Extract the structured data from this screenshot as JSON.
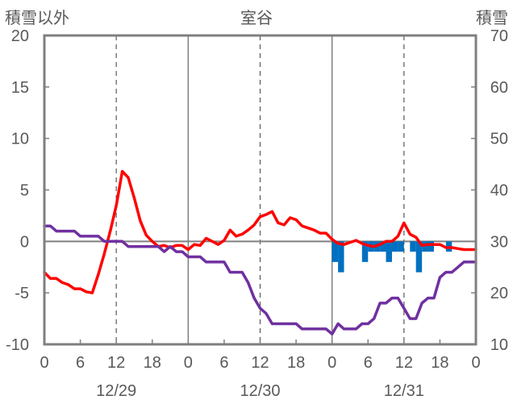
{
  "chart_data": {
    "type": "line",
    "title": "室谷",
    "left_axis_title": "積雪以外",
    "right_axis_title": "積雪",
    "left_ylim": [
      -10,
      20
    ],
    "left_yticks": [
      "20",
      "15",
      "10",
      "5",
      "0",
      "-5",
      "-10"
    ],
    "right_ylim": [
      10,
      70
    ],
    "right_yticks": [
      "70",
      "60",
      "50",
      "40",
      "30",
      "20",
      "10"
    ],
    "xlim_hours": [
      0,
      72
    ],
    "x_tick_labels": [
      "0",
      "6",
      "12",
      "18",
      "0",
      "6",
      "12",
      "18",
      "0",
      "6",
      "12",
      "18",
      "0"
    ],
    "date_labels": [
      "12/29",
      "12/30",
      "12/31"
    ],
    "grid": "solid vertical line at each day start; dashed vertical line at each noon; horizontal line at 0",
    "series": [
      {
        "type": "line",
        "color": "#ff0000",
        "x": [
          0,
          1,
          2,
          3,
          4,
          5,
          6,
          7,
          8,
          9,
          10,
          11,
          12,
          13,
          14,
          15,
          16,
          17,
          18,
          19,
          20,
          21,
          22,
          23,
          24,
          25,
          26,
          27,
          28,
          29,
          30,
          31,
          32,
          33,
          34,
          35,
          36,
          37,
          38,
          39,
          40,
          41,
          42,
          43,
          44,
          45,
          46,
          47,
          48,
          49,
          50,
          51,
          52,
          53,
          54,
          55,
          56,
          57,
          58,
          59,
          60,
          61,
          62,
          63,
          64,
          65,
          66,
          67,
          68,
          69,
          70,
          71,
          72
        ],
        "values": [
          -3.0,
          -3.6,
          -3.6,
          -4.0,
          -4.2,
          -4.6,
          -4.6,
          -4.9,
          -5.0,
          -3.2,
          -1.2,
          1.0,
          3.5,
          6.8,
          6.2,
          4.2,
          2.0,
          0.6,
          0.0,
          -0.5,
          -0.4,
          -0.6,
          -0.4,
          -0.4,
          -0.8,
          -0.3,
          -0.4,
          0.3,
          0.0,
          -0.3,
          0.1,
          1.1,
          0.5,
          0.7,
          1.1,
          1.6,
          2.4,
          2.6,
          2.9,
          1.8,
          1.6,
          2.3,
          2.1,
          1.5,
          1.3,
          1.1,
          0.8,
          0.8,
          0.2,
          -0.2,
          -0.3,
          -0.1,
          0.1,
          -0.2,
          -0.4,
          -0.5,
          -0.3,
          0.0,
          0.0,
          0.5,
          1.8,
          0.7,
          0.4,
          -0.4,
          -0.3,
          -0.3,
          -0.3,
          -0.6,
          -0.6,
          -0.7,
          -0.8,
          -0.8,
          -0.8
        ]
      },
      {
        "type": "line",
        "color": "#7030a0",
        "x": [
          0,
          1,
          2,
          3,
          4,
          5,
          6,
          7,
          8,
          9,
          10,
          11,
          12,
          13,
          14,
          15,
          16,
          17,
          18,
          19,
          20,
          21,
          22,
          23,
          24,
          25,
          26,
          27,
          28,
          29,
          30,
          31,
          32,
          33,
          34,
          35,
          36,
          37,
          38,
          39,
          40,
          41,
          42,
          43,
          44,
          45,
          46,
          47,
          48,
          49,
          50,
          51,
          52,
          53,
          54,
          55,
          56,
          57,
          58,
          59,
          60,
          61,
          62,
          63,
          64,
          65,
          66,
          67,
          68,
          69,
          70,
          71,
          72
        ],
        "values": [
          1.5,
          1.5,
          1.0,
          1.0,
          1.0,
          1.0,
          0.5,
          0.5,
          0.5,
          0.5,
          0.0,
          0.0,
          0.0,
          0.0,
          -0.5,
          -0.5,
          -0.5,
          -0.5,
          -0.5,
          -0.5,
          -1.0,
          -0.5,
          -1.0,
          -1.0,
          -1.5,
          -1.5,
          -1.5,
          -2.0,
          -2.0,
          -2.0,
          -2.0,
          -3.0,
          -3.0,
          -3.0,
          -4.0,
          -5.5,
          -6.5,
          -7.0,
          -8.0,
          -8.0,
          -8.0,
          -8.0,
          -8.0,
          -8.5,
          -8.5,
          -8.5,
          -8.5,
          -8.5,
          -9.0,
          -8.0,
          -8.5,
          -8.5,
          -8.5,
          -8.0,
          -8.0,
          -7.5,
          -6.0,
          -6.0,
          -5.5,
          -5.5,
          -6.5,
          -7.5,
          -7.5,
          -6.0,
          -5.5,
          -5.5,
          -3.5,
          -3.0,
          -3.0,
          -2.5,
          -2.0,
          -2.0,
          -2.0
        ]
      },
      {
        "type": "bar",
        "color": "#0070c0",
        "axis": "left",
        "x": [
          48,
          49,
          50,
          51,
          52,
          53,
          54,
          55,
          56,
          57,
          58,
          59,
          60,
          61,
          62,
          63,
          64,
          65,
          66,
          67,
          68,
          69,
          70,
          71
        ],
        "values": [
          -2.0,
          -3.0,
          0.0,
          0.0,
          0.0,
          -2.0,
          -1.0,
          -1.0,
          -1.0,
          -2.0,
          -1.0,
          -1.0,
          0.0,
          -1.0,
          -3.0,
          -1.0,
          -1.0,
          0.0,
          0.0,
          -1.0,
          0.0,
          0.0,
          0.0,
          0.0
        ]
      }
    ]
  }
}
